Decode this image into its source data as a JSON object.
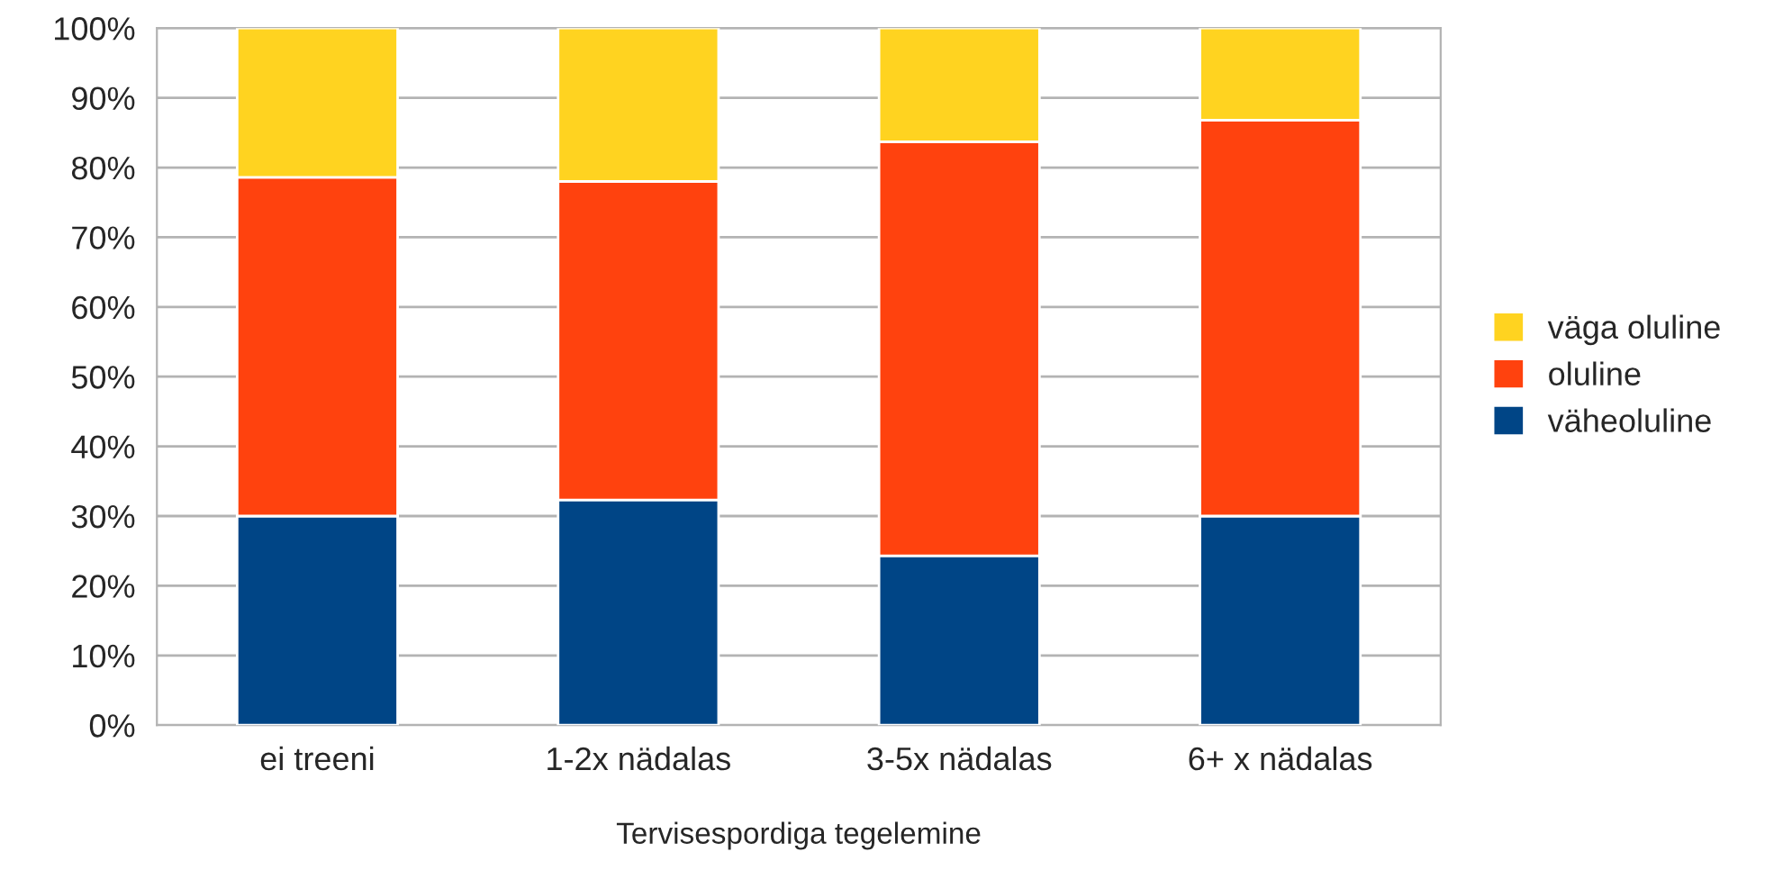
{
  "chart_data": {
    "type": "bar",
    "stacked": true,
    "xlabel": "Tervisespordiga tegelemine",
    "categories": [
      "ei treeni",
      "1-2x nädalas",
      "3-5x nädalas",
      "6+ x nädalas"
    ],
    "series": [
      {
        "name": "väheoluline",
        "color": "#004586",
        "values": [
          30.0,
          32.3,
          24.3,
          30.0
        ]
      },
      {
        "name": "oluline",
        "color": "#ff420e",
        "values": [
          48.6,
          45.7,
          59.4,
          56.8
        ]
      },
      {
        "name": "väga oluline",
        "color": "#ffd320",
        "values": [
          21.4,
          22.0,
          16.3,
          13.2
        ]
      }
    ],
    "ylim": [
      0,
      100
    ],
    "yticks": [
      {
        "value": 0,
        "label": "0%"
      },
      {
        "value": 10,
        "label": "10%"
      },
      {
        "value": 20,
        "label": "20%"
      },
      {
        "value": 30,
        "label": "30%"
      },
      {
        "value": 40,
        "label": "40%"
      },
      {
        "value": 50,
        "label": "50%"
      },
      {
        "value": 60,
        "label": "60%"
      },
      {
        "value": 70,
        "label": "70%"
      },
      {
        "value": 80,
        "label": "80%"
      },
      {
        "value": 90,
        "label": "90%"
      },
      {
        "value": 100,
        "label": "100%"
      }
    ],
    "grid": "y",
    "legend": "right"
  }
}
